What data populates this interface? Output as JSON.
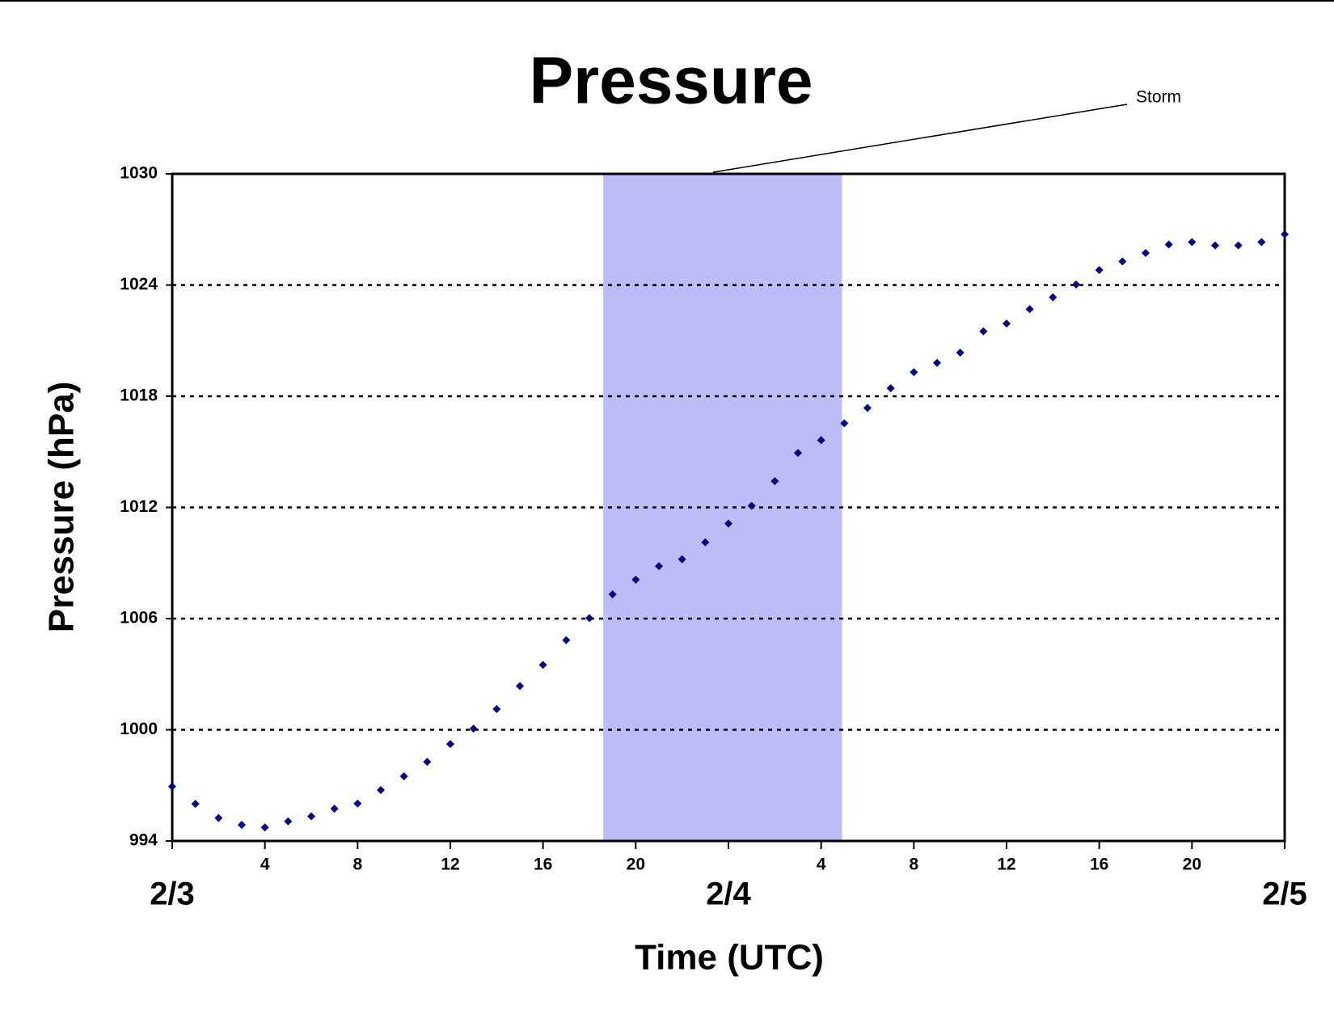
{
  "chart_data": {
    "type": "scatter",
    "title": "Pressure",
    "x_label": "Time (UTC)",
    "y_label": "Pressure (hPa)",
    "annotation": "Storm",
    "storm_span": [
      18.6,
      28.9
    ],
    "storm_color": "#bcbcf8",
    "color": "#000080",
    "xlim": [
      0,
      48
    ],
    "ylim": [
      994,
      1030
    ],
    "yticks": [
      994,
      1000,
      1006,
      1012,
      1018,
      1024,
      1030
    ],
    "xticks": [
      4,
      8,
      12,
      16,
      20,
      {
        "value": 28,
        "label": "4"
      },
      {
        "value": 32,
        "label": "8"
      },
      {
        "value": 36,
        "label": "12"
      },
      {
        "value": 40,
        "label": "16"
      },
      {
        "value": 44,
        "label": "20"
      }
    ],
    "x_date_labels": [
      {
        "value": 0,
        "label": "2/3"
      },
      {
        "value": 24,
        "label": "2/4"
      },
      {
        "value": 48,
        "label": "2/5"
      }
    ],
    "grid": true,
    "x": [
      0,
      1,
      2,
      3,
      4,
      5,
      6,
      7,
      8,
      9,
      10,
      11,
      12,
      13,
      14,
      15,
      16,
      17,
      18,
      19,
      20,
      21,
      22,
      23,
      24,
      25,
      26,
      27,
      28,
      29,
      30,
      31,
      32,
      33,
      34,
      35,
      36,
      37,
      38,
      39,
      40,
      41,
      42,
      43,
      44,
      45,
      46,
      47,
      48
    ],
    "values": [
      996.94,
      996.0,
      995.24,
      994.87,
      994.73,
      995.06,
      995.33,
      995.74,
      996.02,
      996.75,
      997.49,
      998.27,
      999.23,
      1000.06,
      1001.12,
      1002.36,
      1003.5,
      1004.84,
      1006.03,
      1007.31,
      1008.1,
      1008.83,
      1009.2,
      1010.12,
      1011.13,
      1012.09,
      1013.42,
      1014.94,
      1015.63,
      1016.54,
      1017.37,
      1018.43,
      1019.3,
      1019.8,
      1020.35,
      1021.5,
      1021.92,
      1022.7,
      1023.34,
      1024.03,
      1024.81,
      1025.27,
      1025.73,
      1026.19,
      1026.32,
      1026.14,
      1026.14,
      1026.32,
      1026.74
    ]
  }
}
